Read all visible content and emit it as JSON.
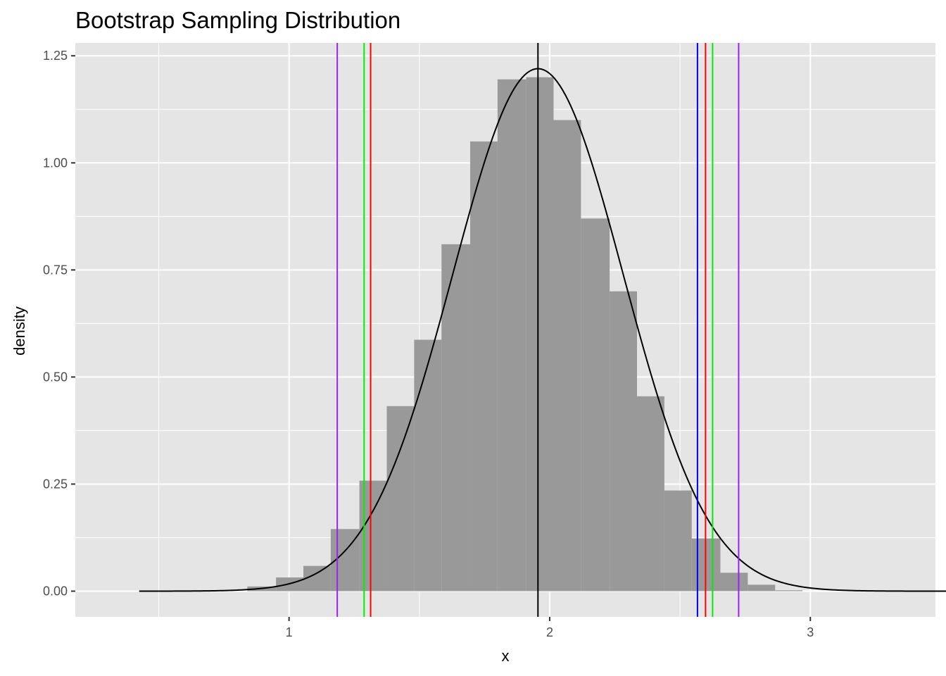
{
  "chart_data": {
    "type": "histogram",
    "title": "Bootstrap Sampling Distribution",
    "xlabel": "x",
    "ylabel": "density",
    "xlim": [
      0.18,
      3.48
    ],
    "ylim": [
      -0.06,
      1.28
    ],
    "x_ticks": [
      1,
      2,
      3
    ],
    "y_ticks": [
      0.0,
      0.25,
      0.5,
      0.75,
      1.0,
      1.25
    ],
    "x_tick_labels": [
      "1",
      "2",
      "3"
    ],
    "y_tick_labels": [
      "0.00",
      "0.25",
      "0.50",
      "0.75",
      "1.00",
      "1.25"
    ],
    "grid": true,
    "legend": "none",
    "histogram": {
      "bin_width": 0.107,
      "bins": [
        {
          "x0": 0.84,
          "x1": 0.95,
          "density": 0.011
        },
        {
          "x0": 0.95,
          "x1": 1.055,
          "density": 0.032
        },
        {
          "x0": 1.055,
          "x1": 1.16,
          "density": 0.059
        },
        {
          "x0": 1.16,
          "x1": 1.27,
          "density": 0.145
        },
        {
          "x0": 1.27,
          "x1": 1.375,
          "density": 0.258
        },
        {
          "x0": 1.375,
          "x1": 1.48,
          "density": 0.432
        },
        {
          "x0": 1.48,
          "x1": 1.585,
          "density": 0.587
        },
        {
          "x0": 1.585,
          "x1": 1.695,
          "density": 0.81
        },
        {
          "x0": 1.695,
          "x1": 1.8,
          "density": 1.05
        },
        {
          "x0": 1.8,
          "x1": 1.91,
          "density": 1.195
        },
        {
          "x0": 1.91,
          "x1": 2.015,
          "density": 1.2
        },
        {
          "x0": 2.015,
          "x1": 2.12,
          "density": 1.1
        },
        {
          "x0": 2.12,
          "x1": 2.23,
          "density": 0.87
        },
        {
          "x0": 2.23,
          "x1": 2.335,
          "density": 0.7
        },
        {
          "x0": 2.335,
          "x1": 2.44,
          "density": 0.455
        },
        {
          "x0": 2.44,
          "x1": 2.545,
          "density": 0.235
        },
        {
          "x0": 2.545,
          "x1": 2.655,
          "density": 0.123
        },
        {
          "x0": 2.655,
          "x1": 2.76,
          "density": 0.043
        },
        {
          "x0": 2.76,
          "x1": 2.865,
          "density": 0.015
        },
        {
          "x0": 2.865,
          "x1": 2.97,
          "density": 0.002
        }
      ]
    },
    "density_curve": {
      "type": "normal",
      "mean": 1.955,
      "sd": 0.327,
      "x_range": [
        0.425,
        3.53
      ]
    },
    "vertical_lines": [
      {
        "x": 1.955,
        "color": "#000000"
      },
      {
        "x": 1.185,
        "color": "#a020f0"
      },
      {
        "x": 2.725,
        "color": "#a020f0"
      },
      {
        "x": 1.288,
        "color": "#00ee00"
      },
      {
        "x": 2.625,
        "color": "#00ee00"
      },
      {
        "x": 1.313,
        "color": "#ff0000"
      },
      {
        "x": 2.598,
        "color": "#ff0000"
      },
      {
        "x": 2.567,
        "color": "#0000ff"
      }
    ],
    "colors": {
      "panel_background": "#e5e5e5",
      "grid": "#ffffff",
      "bars": "#999999",
      "curve": "#000000"
    }
  }
}
